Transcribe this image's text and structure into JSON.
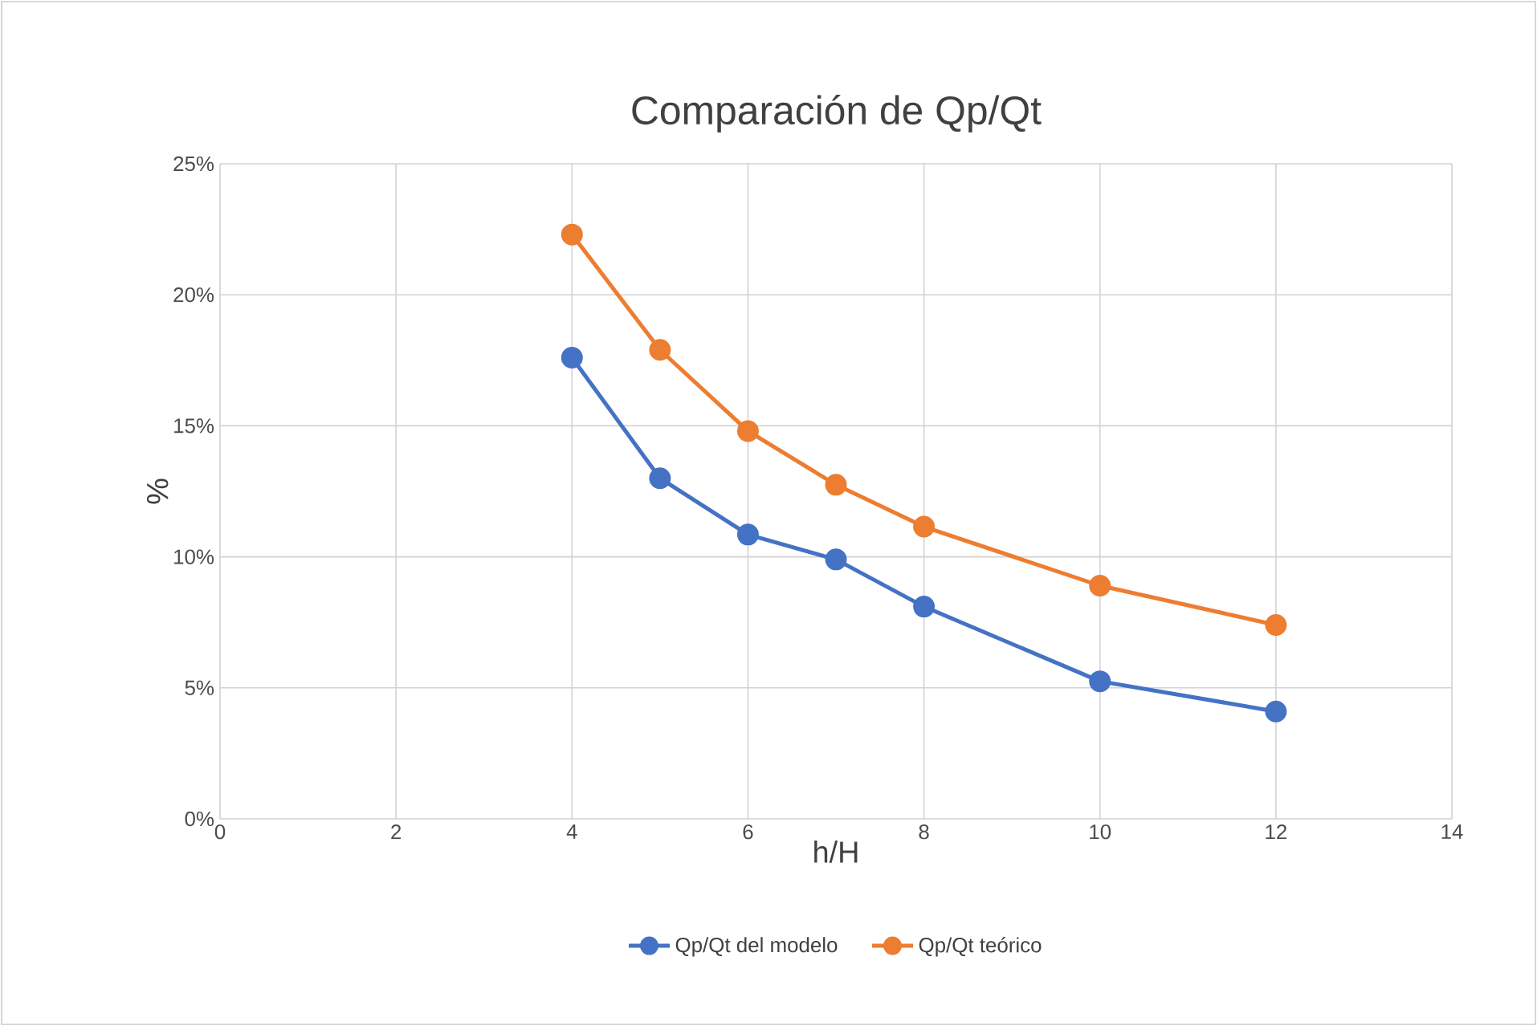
{
  "chart_data": {
    "type": "line",
    "title": "Comparación de Qp/Qt",
    "xlabel": "h/H",
    "ylabel": "%",
    "x": [
      4,
      5,
      6,
      7,
      8,
      10,
      12
    ],
    "series": [
      {
        "name": "Qp/Qt del modelo",
        "color": "#4472c4",
        "values": [
          17.6,
          13.0,
          10.85,
          9.9,
          8.1,
          5.25,
          4.1
        ]
      },
      {
        "name": "Qp/Qt teórico",
        "color": "#ed7d31",
        "values": [
          22.3,
          17.9,
          14.8,
          12.75,
          11.15,
          8.9,
          7.4
        ]
      }
    ],
    "xlim": [
      0,
      14
    ],
    "xticks": [
      0,
      2,
      4,
      6,
      8,
      10,
      12,
      14
    ],
    "ylim": [
      0,
      25
    ],
    "yticks": [
      {
        "value": 0,
        "label": "0%"
      },
      {
        "value": 5,
        "label": "5%"
      },
      {
        "value": 10,
        "label": "10%"
      },
      {
        "value": 15,
        "label": "15%"
      },
      {
        "value": 20,
        "label": "20%"
      },
      {
        "value": 25,
        "label": "25%"
      }
    ],
    "grid": true,
    "legend": "bottom",
    "marker": "circle",
    "line_style": "solid"
  }
}
